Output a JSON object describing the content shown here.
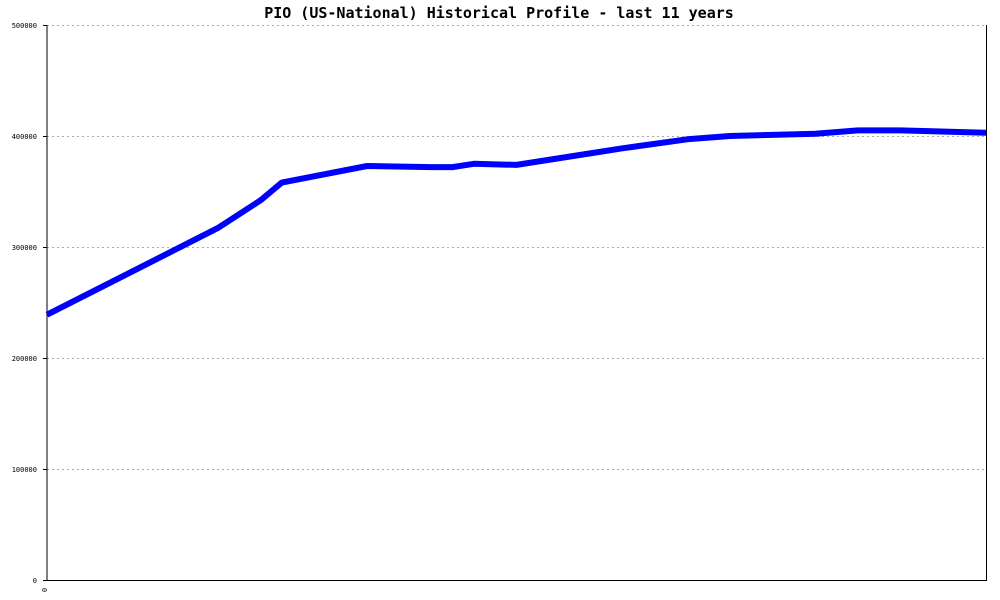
{
  "chart_data": {
    "type": "line",
    "title": "PIO (US-National) Historical Profile - last 11 years",
    "xlabel": "",
    "ylabel": "",
    "ylim": [
      0,
      500000
    ],
    "yticks": [
      "0",
      "100000",
      "200000",
      "300000",
      "400000",
      "500000"
    ],
    "xticks": [
      "0"
    ],
    "grid": true,
    "legend": "none",
    "series": [
      {
        "color": "#0000ff",
        "x": [
          0,
          8,
          10,
          11,
          15,
          18,
          19,
          20,
          22,
          25,
          27,
          30,
          32,
          34,
          36,
          38,
          40,
          44
        ],
        "values": [
          239000,
          317000,
          342000,
          358000,
          373000,
          372000,
          372000,
          375000,
          374000,
          383000,
          389000,
          397000,
          400000,
          401000,
          402000,
          405000,
          405000,
          403000
        ]
      }
    ]
  }
}
